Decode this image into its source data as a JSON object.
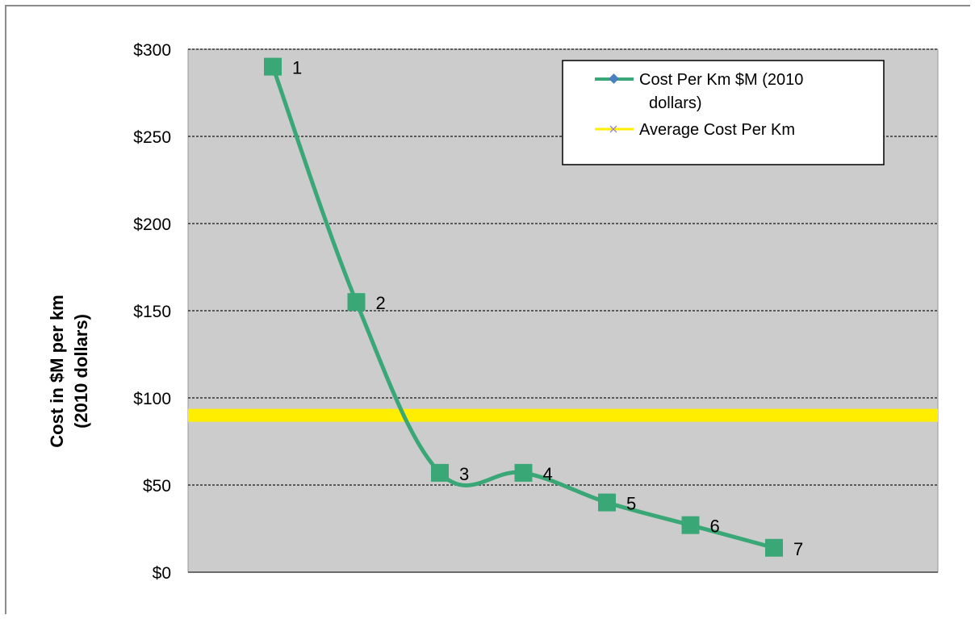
{
  "chart_data": {
    "type": "line",
    "ylabel_lines": [
      "Cost in $M per km",
      "(2010 dollars)"
    ],
    "xlabel": "",
    "ylim": [
      0,
      300
    ],
    "y_ticks": [
      0,
      50,
      100,
      150,
      200,
      250,
      300
    ],
    "y_tick_labels": [
      "$0",
      "$50",
      "$100",
      "$150",
      "$200",
      "$250",
      "$300"
    ],
    "grid": true,
    "legend_placement": "top-right",
    "x": [
      1,
      2,
      3,
      4,
      5,
      6,
      7
    ],
    "point_labels": [
      "1",
      "2",
      "3",
      "4",
      "5",
      "6",
      "7"
    ],
    "series": [
      {
        "name": "Cost Per Km $M (2010 dollars)",
        "legend_lines": [
          "Cost Per Km $M (2010",
          "dollars)"
        ],
        "values": [
          290,
          155,
          57,
          57,
          40,
          27,
          14
        ],
        "color": "#3aa876",
        "marker": "square"
      },
      {
        "name": "Average Cost Per Km",
        "legend_lines": [
          "Average Cost Per Km"
        ],
        "values": [
          90,
          90,
          90,
          90,
          90,
          90,
          90
        ],
        "color": "#ffee00",
        "marker": "x"
      }
    ],
    "colors": {
      "plot_background": "#cccccc",
      "gridline": "#333333",
      "legend_marker_series1": "#4a7fc1",
      "legend_marker_series2": "#9a8ac8"
    }
  }
}
